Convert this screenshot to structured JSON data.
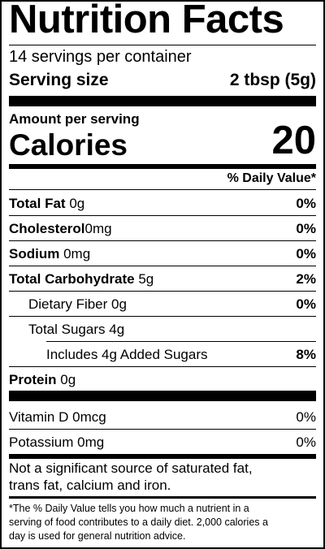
{
  "title": "Nutrition Facts",
  "servings_per_container": "14 servings per container",
  "serving_size": {
    "label": "Serving size",
    "value": "2 tbsp (5g)"
  },
  "amount_per_serving": "Amount per serving",
  "calories": {
    "label": "Calories",
    "value": "20"
  },
  "daily_value_header": "% Daily Value*",
  "nutrients": {
    "total_fat": {
      "name": "Total Fat",
      "amount": "0g",
      "dv": "0%"
    },
    "cholesterol": {
      "name": "Cholesterol",
      "amount": "0mg",
      "dv": "0%"
    },
    "sodium": {
      "name": "Sodium",
      "amount": "0mg",
      "dv": "0%"
    },
    "total_carbohydrate": {
      "name": "Total Carbohydrate",
      "amount": "5g",
      "dv": "2%"
    },
    "dietary_fiber": {
      "name": "Dietary Fiber",
      "amount": "0g",
      "dv": "0%"
    },
    "total_sugars": {
      "name": "Total Sugars",
      "amount": "4g"
    },
    "added_sugars": {
      "name": "Includes 4g Added Sugars",
      "dv": "8%"
    },
    "protein": {
      "name": "Protein",
      "amount": "0g"
    }
  },
  "vitamins": {
    "vitamin_d": {
      "name": "Vitamin D",
      "amount": "0mcg",
      "dv": "0%"
    },
    "potassium": {
      "name": "Potassium",
      "amount": "0mg",
      "dv": "0%"
    }
  },
  "not_significant_note": [
    "Not a significant source of saturated fat,",
    "trans fat, calcium and iron."
  ],
  "footnote": [
    "*The % Daily Value tells you how much a nutrient in a",
    "serving of food contributes to a daily diet. 2,000 calories a",
    "day is used for general nutrition advice."
  ]
}
